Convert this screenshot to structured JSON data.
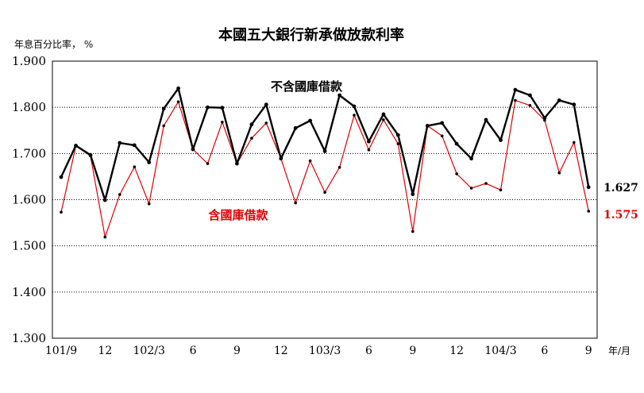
{
  "chart_data": {
    "type": "line",
    "title": "本國五大銀行新承做放款利率",
    "ylabel": "年息百分比率， %",
    "xlabel": "年/月",
    "ylim": [
      1.3,
      1.9
    ],
    "yticks": [
      "1.300",
      "1.400",
      "1.500",
      "1.600",
      "1.700",
      "1.800",
      "1.900"
    ],
    "grid": true,
    "x_tick_labels": [
      {
        "index": 0,
        "label": "101/9"
      },
      {
        "index": 3,
        "label": "12"
      },
      {
        "index": 6,
        "label": "102/3"
      },
      {
        "index": 9,
        "label": "6"
      },
      {
        "index": 12,
        "label": "9"
      },
      {
        "index": 15,
        "label": "12"
      },
      {
        "index": 18,
        "label": "103/3"
      },
      {
        "index": 21,
        "label": "6"
      },
      {
        "index": 24,
        "label": "9"
      },
      {
        "index": 27,
        "label": "12"
      },
      {
        "index": 30,
        "label": "104/3"
      },
      {
        "index": 33,
        "label": "6"
      },
      {
        "index": 36,
        "label": "9"
      }
    ],
    "series": [
      {
        "name": "不含國庫借款",
        "color": "#000000",
        "end_label": "1.627",
        "values": [
          1.649,
          1.717,
          1.697,
          1.599,
          1.723,
          1.718,
          1.681,
          1.797,
          1.841,
          1.709,
          1.8,
          1.799,
          1.678,
          1.763,
          1.806,
          1.689,
          1.755,
          1.771,
          1.705,
          1.826,
          1.802,
          1.726,
          1.785,
          1.74,
          1.612,
          1.76,
          1.766,
          1.721,
          1.689,
          1.773,
          1.729,
          1.838,
          1.826,
          1.777,
          1.815,
          1.806,
          1.627
        ]
      },
      {
        "name": "含國庫借款",
        "color": "#e00000",
        "end_label": "1.575",
        "values": [
          1.573,
          1.716,
          1.695,
          1.519,
          1.611,
          1.671,
          1.591,
          1.76,
          1.812,
          1.709,
          1.678,
          1.768,
          1.678,
          1.733,
          1.766,
          1.689,
          1.593,
          1.684,
          1.616,
          1.67,
          1.783,
          1.708,
          1.773,
          1.721,
          1.531,
          1.76,
          1.738,
          1.656,
          1.625,
          1.635,
          1.621,
          1.815,
          1.804,
          1.772,
          1.658,
          1.724,
          1.575
        ]
      }
    ]
  }
}
